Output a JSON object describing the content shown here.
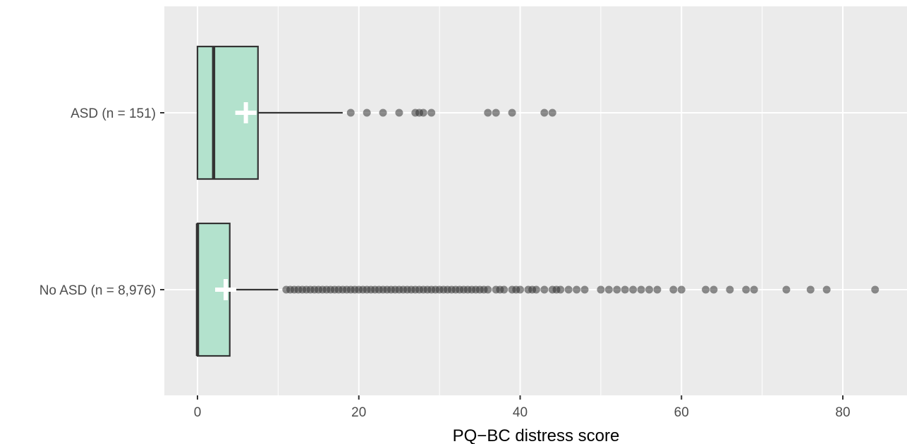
{
  "chart_data": {
    "type": "box",
    "orientation": "horizontal",
    "title": "",
    "xlabel": "PQ−BC distress score",
    "ylabel": "",
    "xlim": [
      -4,
      88
    ],
    "xticks": [
      0,
      20,
      40,
      60,
      80
    ],
    "xtick_labels": [
      "0",
      "20",
      "40",
      "60",
      "80"
    ],
    "grid": true,
    "colors": {
      "panel_bg": "#ebebeb",
      "grid": "#ffffff",
      "box_fill": "#b3e2cd",
      "box_stroke": "#333333",
      "outlier": "#333333",
      "mean_marker": "#ffffff"
    },
    "groups": [
      {
        "label": "ASD (n = 151)",
        "q1": 0,
        "median": 2,
        "q3": 7.5,
        "whisker_low": 0,
        "whisker_high": 18,
        "mean": 6,
        "outliers": [
          19,
          21,
          23,
          25,
          27,
          27.5,
          28,
          29,
          36,
          37,
          39,
          43,
          44
        ]
      },
      {
        "label": "No ASD (n = 8,976)",
        "q1": 0,
        "median": 0,
        "q3": 4,
        "whisker_low": 0,
        "whisker_high": 10,
        "mean": 3.5,
        "outliers": [
          11,
          11.5,
          12,
          12.5,
          13,
          13.5,
          14,
          14.5,
          15,
          15.5,
          16,
          16.5,
          17,
          17.5,
          18,
          18.5,
          19,
          19.5,
          20,
          20.5,
          21,
          21.5,
          22,
          22.5,
          23,
          23.5,
          24,
          24.5,
          25,
          25.5,
          26,
          26.5,
          27,
          27.5,
          28,
          28.5,
          29,
          29.5,
          30,
          30.5,
          31,
          31.5,
          32,
          32.5,
          33,
          33.5,
          34,
          34.5,
          35,
          35.5,
          36,
          37,
          37.5,
          38,
          39,
          39.5,
          40,
          41,
          41.5,
          42,
          43,
          44,
          44.5,
          45,
          46,
          47,
          48,
          50,
          51,
          52,
          53,
          54,
          55,
          56,
          57,
          59,
          60,
          63,
          64,
          66,
          68,
          69,
          73,
          76,
          78,
          84
        ]
      }
    ]
  }
}
